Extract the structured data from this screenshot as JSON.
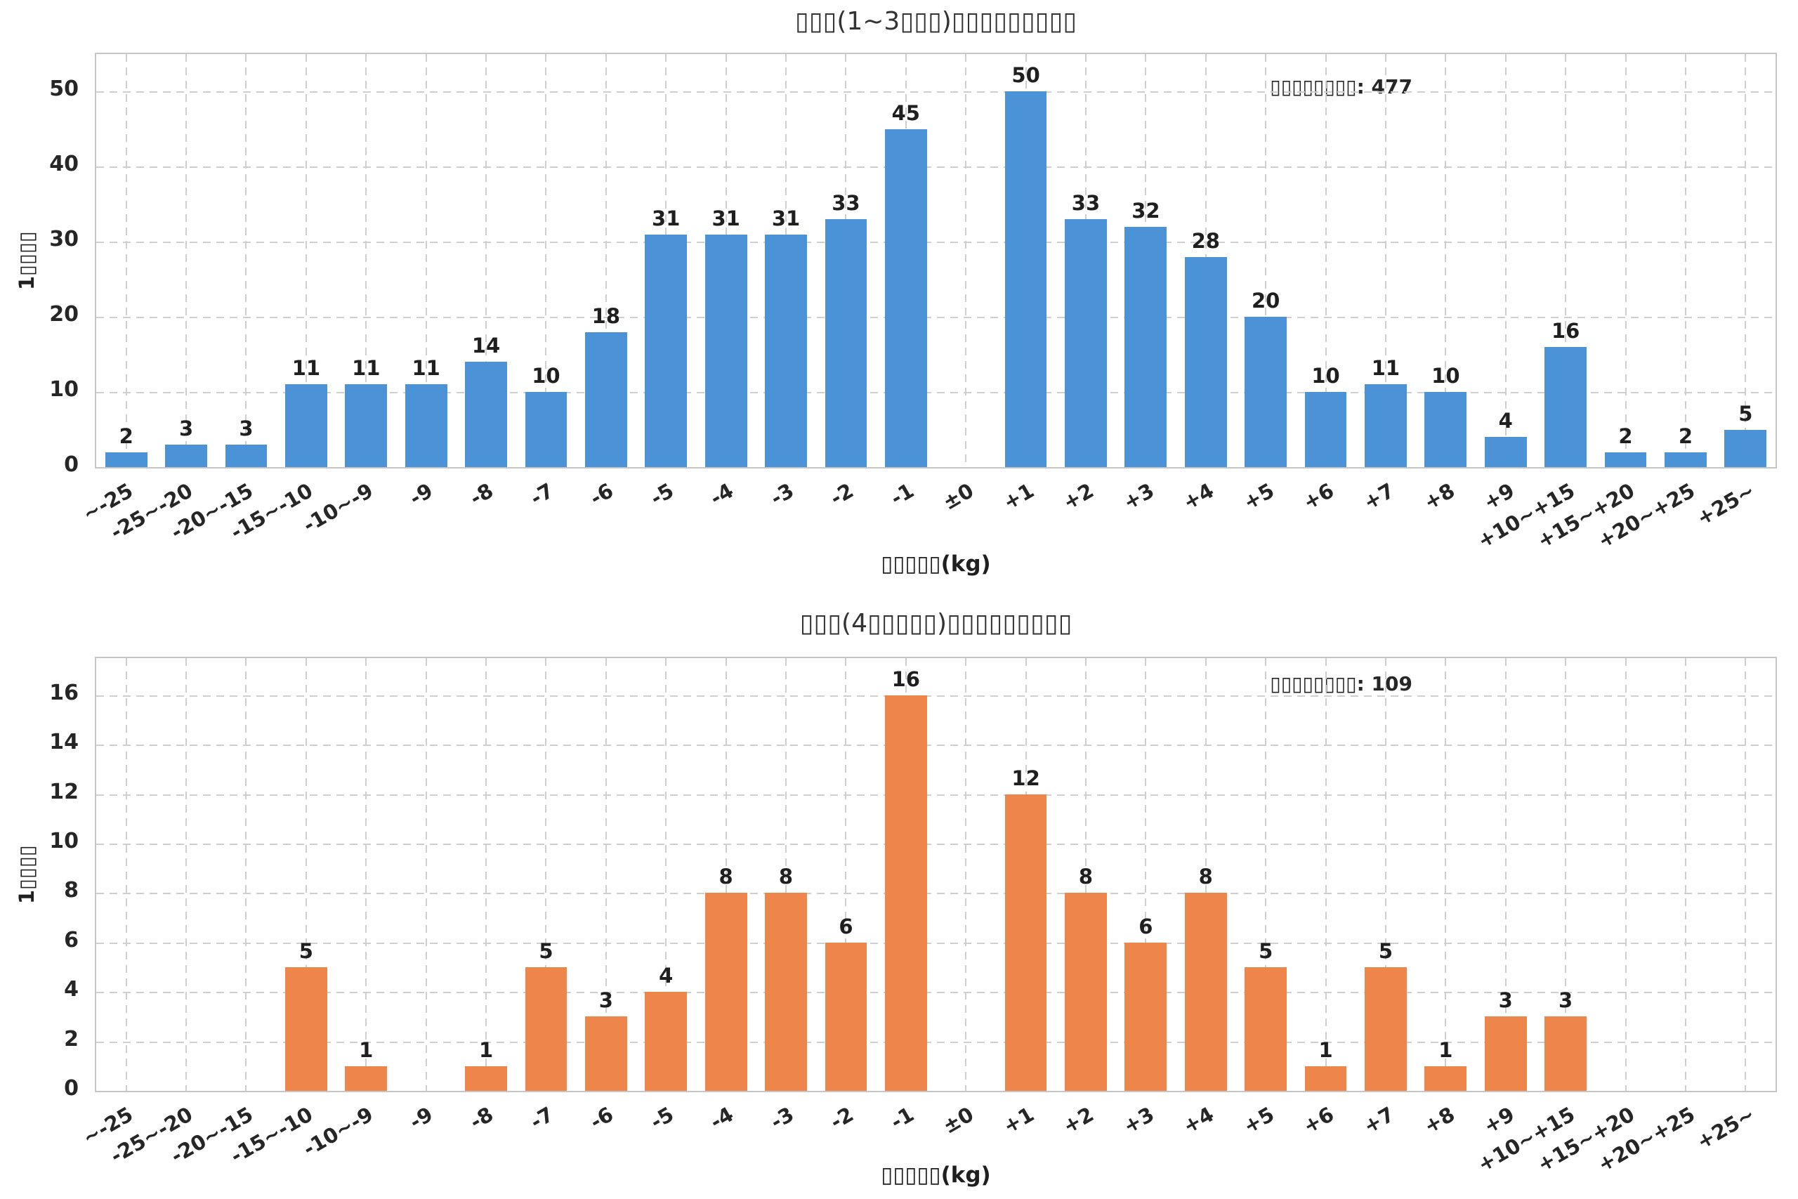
{
  "chart_data": [
    {
      "type": "bar",
      "title": "▯▯▯(1~3▯▯▯)▯▯▯▯▯▯▯▯▯",
      "annotation": "▯▯▯▯▯▯▯▯: 477",
      "total_count": 477,
      "xlabel": "▯▯▯▯▯(kg)",
      "ylabel": "1▯▯▯▯",
      "bar_color": "#4B92D7",
      "grid": true,
      "ylim": [
        0,
        55
      ],
      "yticks": [
        0,
        10,
        20,
        30,
        40,
        50
      ],
      "categories": [
        "~-25",
        "-25~-20",
        "-20~-15",
        "-15~-10",
        "-10~-9",
        "-9",
        "-8",
        "-7",
        "-6",
        "-5",
        "-4",
        "-3",
        "-2",
        "-1",
        "±0",
        "+1",
        "+2",
        "+3",
        "+4",
        "+5",
        "+6",
        "+7",
        "+8",
        "+9",
        "+10~+15",
        "+15~+20",
        "+20~+25",
        "+25~"
      ],
      "values": [
        2,
        3,
        3,
        11,
        11,
        11,
        14,
        10,
        18,
        31,
        31,
        31,
        33,
        45,
        0,
        50,
        33,
        32,
        28,
        20,
        10,
        11,
        10,
        4,
        16,
        2,
        2,
        5
      ]
    },
    {
      "type": "bar",
      "title": "▯▯▯(4▯▯▯▯▯)▯▯▯▯▯▯▯▯▯",
      "annotation": "▯▯▯▯▯▯▯▯: 109",
      "total_count": 109,
      "xlabel": "▯▯▯▯▯(kg)",
      "ylabel": "1▯▯▯▯",
      "bar_color": "#EE854A",
      "grid": true,
      "ylim": [
        0,
        17.5
      ],
      "yticks": [
        0,
        2,
        4,
        6,
        8,
        10,
        12,
        14,
        16
      ],
      "categories": [
        "~-25",
        "-25~-20",
        "-20~-15",
        "-15~-10",
        "-10~-9",
        "-9",
        "-8",
        "-7",
        "-6",
        "-5",
        "-4",
        "-3",
        "-2",
        "-1",
        "±0",
        "+1",
        "+2",
        "+3",
        "+4",
        "+5",
        "+6",
        "+7",
        "+8",
        "+9",
        "+10~+15",
        "+15~+20",
        "+20~+25",
        "+25~"
      ],
      "values": [
        0,
        0,
        0,
        5,
        1,
        0,
        1,
        5,
        3,
        4,
        8,
        8,
        6,
        16,
        0,
        12,
        8,
        6,
        8,
        5,
        1,
        5,
        1,
        3,
        3,
        0,
        0,
        0
      ]
    }
  ]
}
